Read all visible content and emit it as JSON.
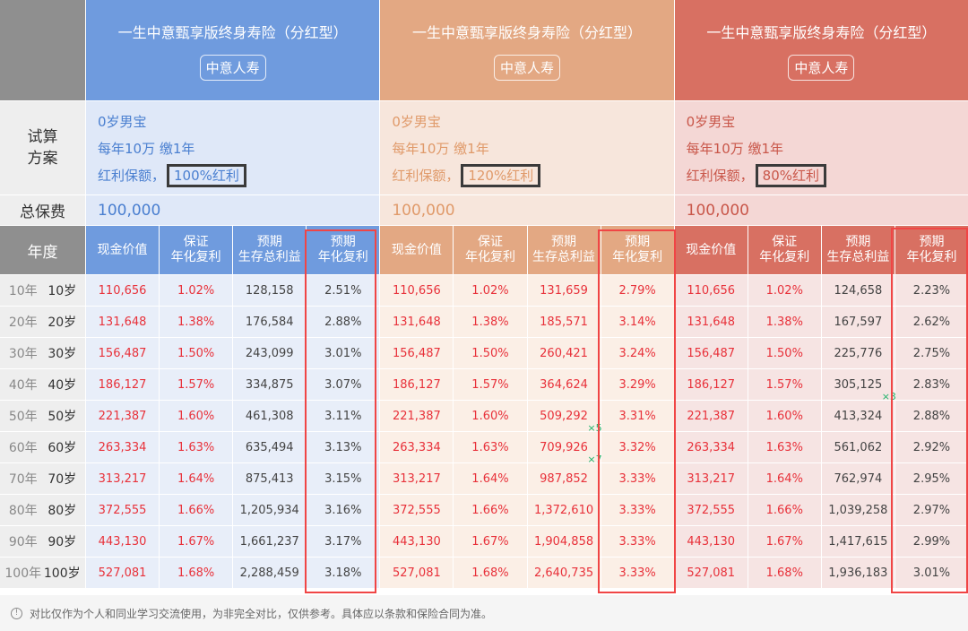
{
  "labels": {
    "plan": "试算\n方案",
    "premium": "总保费",
    "year": "年度"
  },
  "columns": [
    "现金价值",
    "保证\n年化复利",
    "预期\n生存总利益",
    "预期\n年化复利"
  ],
  "years": [
    [
      "10年",
      "10岁"
    ],
    [
      "20年",
      "20岁"
    ],
    [
      "30年",
      "30岁"
    ],
    [
      "40年",
      "40岁"
    ],
    [
      "50年",
      "50岁"
    ],
    [
      "60年",
      "60岁"
    ],
    [
      "70年",
      "70岁"
    ],
    [
      "80年",
      "80岁"
    ],
    [
      "90年",
      "90岁"
    ],
    [
      "100年",
      "100岁"
    ]
  ],
  "products": [
    {
      "title": "一生中意甄享版终身寿险（分红型）",
      "company": "中意人寿",
      "plan": [
        "0岁男宝",
        "每年10万 缴1年"
      ],
      "dividend_prefix": "红利保额，",
      "dividend": "100%红利",
      "premium": "100,000",
      "colors": {
        "header": "#6f9bde",
        "light": "#dfe8f8",
        "cell": "#e8eef9",
        "text": "#4a7fd0"
      },
      "total_color": "dark",
      "rows": [
        [
          "110,656",
          "1.02%",
          "128,158",
          "2.51%",
          ""
        ],
        [
          "131,648",
          "1.38%",
          "176,584",
          "2.88%",
          ""
        ],
        [
          "156,487",
          "1.50%",
          "243,099",
          "3.01%",
          ""
        ],
        [
          "186,127",
          "1.57%",
          "334,875",
          "3.07%",
          ""
        ],
        [
          "221,387",
          "1.60%",
          "461,308",
          "3.11%",
          ""
        ],
        [
          "263,334",
          "1.63%",
          "635,494",
          "3.13%",
          ""
        ],
        [
          "313,217",
          "1.64%",
          "875,413",
          "3.15%",
          ""
        ],
        [
          "372,555",
          "1.66%",
          "1,205,934",
          "3.16%",
          ""
        ],
        [
          "443,130",
          "1.67%",
          "1,661,237",
          "3.17%",
          ""
        ],
        [
          "527,081",
          "1.68%",
          "2,288,459",
          "3.18%",
          ""
        ]
      ]
    },
    {
      "title": "一生中意甄享版终身寿险（分红型）",
      "company": "中意人寿",
      "plan": [
        "0岁男宝",
        "每年10万 缴1年"
      ],
      "dividend_prefix": "红利保额，",
      "dividend": "120%红利",
      "premium": "100,000",
      "colors": {
        "header": "#e3a883",
        "light": "#f7e6dc",
        "cell": "#fbefe6",
        "text": "#e09a6a"
      },
      "total_color": "red",
      "rows": [
        [
          "110,656",
          "1.02%",
          "131,659",
          "2.79%",
          ""
        ],
        [
          "131,648",
          "1.38%",
          "185,571",
          "3.14%",
          ""
        ],
        [
          "156,487",
          "1.50%",
          "260,421",
          "3.24%",
          ""
        ],
        [
          "186,127",
          "1.57%",
          "364,624",
          "3.29%",
          ""
        ],
        [
          "221,387",
          "1.60%",
          "509,292",
          "3.31%",
          "×5"
        ],
        [
          "263,334",
          "1.63%",
          "709,926",
          "3.32%",
          "×7"
        ],
        [
          "313,217",
          "1.64%",
          "987,852",
          "3.33%",
          ""
        ],
        [
          "372,555",
          "1.66%",
          "1,372,610",
          "3.33%",
          ""
        ],
        [
          "443,130",
          "1.67%",
          "1,904,858",
          "3.33%",
          ""
        ],
        [
          "527,081",
          "1.68%",
          "2,640,735",
          "3.33%",
          ""
        ]
      ]
    },
    {
      "title": "一生中意甄享版终身寿险（分红型）",
      "company": "中意人寿",
      "plan": [
        "0岁男宝",
        "每年10万 缴1年"
      ],
      "dividend_prefix": "红利保额，",
      "dividend": "80%红利",
      "premium": "100,000",
      "colors": {
        "header": "#d87062",
        "light": "#f4d7d5",
        "cell": "#f6e4e3",
        "text": "#c9574a"
      },
      "total_color": "dark",
      "rows": [
        [
          "110,656",
          "1.02%",
          "124,658",
          "2.23%",
          ""
        ],
        [
          "131,648",
          "1.38%",
          "167,597",
          "2.62%",
          ""
        ],
        [
          "156,487",
          "1.50%",
          "225,776",
          "2.75%",
          ""
        ],
        [
          "186,127",
          "1.57%",
          "305,125",
          "2.83%",
          "×3"
        ],
        [
          "221,387",
          "1.60%",
          "413,324",
          "2.88%",
          ""
        ],
        [
          "263,334",
          "1.63%",
          "561,062",
          "2.92%",
          ""
        ],
        [
          "313,217",
          "1.64%",
          "762,974",
          "2.95%",
          ""
        ],
        [
          "372,555",
          "1.66%",
          "1,039,258",
          "2.97%",
          ""
        ],
        [
          "443,130",
          "1.67%",
          "1,417,615",
          "2.99%",
          ""
        ],
        [
          "527,081",
          "1.68%",
          "1,936,183",
          "3.01%",
          ""
        ]
      ]
    }
  ],
  "footer": {
    "icon": "info-circle-icon",
    "text": "对比仅作为个人和同业学习交流使用，为非完全对比，仅供参考。具体应以条款和保险合同为准。"
  }
}
